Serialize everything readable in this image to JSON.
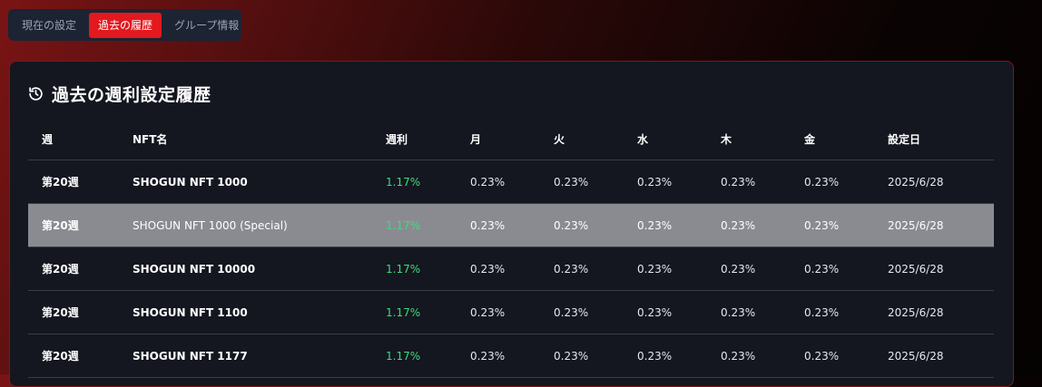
{
  "tabs": [
    {
      "label": "現在の設定",
      "active": false
    },
    {
      "label": "過去の履歴",
      "active": true
    },
    {
      "label": "グループ情報",
      "active": false
    }
  ],
  "card": {
    "title": "過去の週利設定履歴",
    "icon": "history-icon"
  },
  "table": {
    "headers": [
      "週",
      "NFT名",
      "週利",
      "月",
      "火",
      "水",
      "木",
      "金",
      "設定日"
    ],
    "rows": [
      [
        "第20週",
        "SHOGUN NFT 1000",
        "1.17%",
        "0.23%",
        "0.23%",
        "0.23%",
        "0.23%",
        "0.23%",
        "2025/6/28"
      ],
      [
        "第20週",
        "SHOGUN NFT 1000 (Special)",
        "1.17%",
        "0.23%",
        "0.23%",
        "0.23%",
        "0.23%",
        "0.23%",
        "2025/6/28"
      ],
      [
        "第20週",
        "SHOGUN NFT 10000",
        "1.17%",
        "0.23%",
        "0.23%",
        "0.23%",
        "0.23%",
        "0.23%",
        "2025/6/28"
      ],
      [
        "第20週",
        "SHOGUN NFT 1100",
        "1.17%",
        "0.23%",
        "0.23%",
        "0.23%",
        "0.23%",
        "0.23%",
        "2025/6/28"
      ],
      [
        "第20週",
        "SHOGUN NFT 1177",
        "1.17%",
        "0.23%",
        "0.23%",
        "0.23%",
        "0.23%",
        "0.23%",
        "2025/6/28"
      ]
    ]
  },
  "colors": {
    "accent": "#e2191e",
    "rate_green": "#3ddc7a",
    "card_bg": "#141620",
    "hover_row": "#8a8b91"
  }
}
